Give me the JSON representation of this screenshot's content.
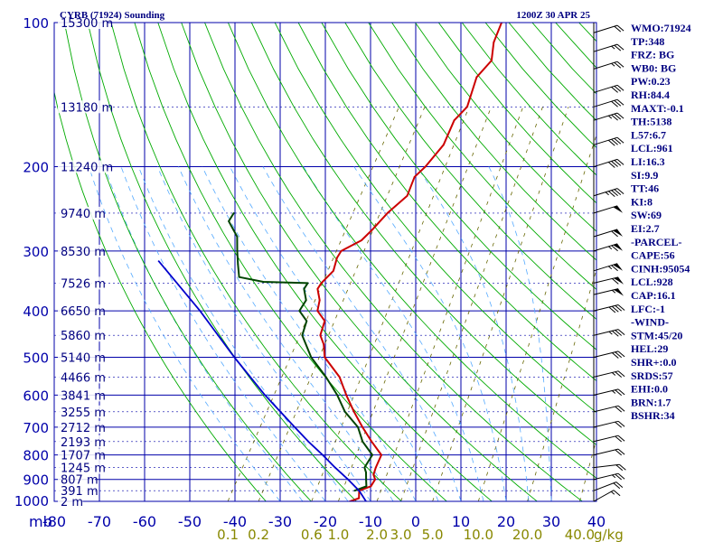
{
  "header": {
    "station": "CYRB (71924) Sounding",
    "time": "1200Z 30 APR 25"
  },
  "colors": {
    "background": "#ffffff",
    "grid": "#0000aa",
    "isotherm": "#0000aa",
    "dry_adiabat": "#00aa00",
    "moist_adiabat": "#55aaff",
    "mixing_ratio": "#666600",
    "temperature": "#cc0000",
    "dewpoint": "#004400",
    "parcel": "#0000cc",
    "text": "#000080",
    "mixing_label": "#888800"
  },
  "chart_data": {
    "type": "line",
    "title": "CYRB (71924) Sounding",
    "subtitle": "1200Z 30 APR 25",
    "x_axis": {
      "unit_label": "mb",
      "ticks": [
        "-80",
        "-70",
        "-60",
        "-50",
        "-40",
        "-30",
        "-20",
        "-10",
        "0",
        "10",
        "20",
        "30",
        "40"
      ],
      "range": [
        -80,
        40
      ]
    },
    "y_axis": {
      "scale": "log",
      "ticks": [
        "100",
        "200",
        "300",
        "400",
        "500",
        "600",
        "700",
        "800",
        "900",
        "1000"
      ],
      "range": [
        100,
        1000
      ]
    },
    "heights": [
      {
        "p": 100,
        "label": "15300 m"
      },
      {
        "p": 150,
        "label": "13180 m"
      },
      {
        "p": 200,
        "label": "11240 m"
      },
      {
        "p": 250,
        "label": "9740 m"
      },
      {
        "p": 300,
        "label": "8530 m"
      },
      {
        "p": 350,
        "label": "7526 m"
      },
      {
        "p": 400,
        "label": "6650 m"
      },
      {
        "p": 450,
        "label": "5860 m"
      },
      {
        "p": 500,
        "label": "5140 m"
      },
      {
        "p": 550,
        "label": "4466 m"
      },
      {
        "p": 600,
        "label": "3841 m"
      },
      {
        "p": 650,
        "label": "3255 m"
      },
      {
        "p": 700,
        "label": "2712 m"
      },
      {
        "p": 750,
        "label": "2193 m"
      },
      {
        "p": 800,
        "label": "1707 m"
      },
      {
        "p": 850,
        "label": "1245 m"
      },
      {
        "p": 900,
        "label": "807 m"
      },
      {
        "p": 950,
        "label": "391 m"
      },
      {
        "p": 1000,
        "label": "2 m"
      }
    ],
    "mixing_ratio_labels": [
      "0.1",
      "0.2",
      "0.6",
      "1.0",
      "2.0",
      "3.0",
      "5.0",
      "10.0",
      "20.0",
      "40.0"
    ],
    "mixing_ratio_unit": "g/kg",
    "mixing_ratio_values": [
      0.1,
      0.2,
      0.6,
      1.0,
      2.0,
      3.0,
      5.0,
      10.0,
      20.0,
      40.0
    ],
    "series": [
      {
        "key": "temperature",
        "points": [
          [
            1005,
            -15
          ],
          [
            985,
            -13
          ],
          [
            950,
            -14
          ],
          [
            930,
            -12
          ],
          [
            900,
            -12
          ],
          [
            880,
            -13
          ],
          [
            850,
            -13.5
          ],
          [
            800,
            -14
          ],
          [
            750,
            -18
          ],
          [
            700,
            -22
          ],
          [
            650,
            -26
          ],
          [
            600,
            -30
          ],
          [
            550,
            -34
          ],
          [
            500,
            -40
          ],
          [
            470,
            -42
          ],
          [
            450,
            -44
          ],
          [
            420,
            -45
          ],
          [
            400,
            -48
          ],
          [
            380,
            -49
          ],
          [
            360,
            -51
          ],
          [
            350,
            -51
          ],
          [
            330,
            -50
          ],
          [
            310,
            -51
          ],
          [
            300,
            -51
          ],
          [
            285,
            -48
          ],
          [
            270,
            -47
          ],
          [
            250,
            -46
          ],
          [
            230,
            -44
          ],
          [
            210,
            -45
          ],
          [
            200,
            -44
          ],
          [
            180,
            -43
          ],
          [
            160,
            -44
          ],
          [
            150,
            -43
          ],
          [
            130,
            -45
          ],
          [
            120,
            -44
          ],
          [
            110,
            -46
          ],
          [
            100,
            -47
          ]
        ]
      },
      {
        "key": "dewpoint",
        "points": [
          [
            950,
            -15
          ],
          [
            930,
            -13
          ],
          [
            900,
            -14
          ],
          [
            870,
            -15
          ],
          [
            850,
            -16
          ],
          [
            800,
            -16
          ],
          [
            750,
            -20
          ],
          [
            700,
            -23
          ],
          [
            650,
            -28
          ],
          [
            600,
            -32
          ],
          [
            550,
            -37
          ],
          [
            500,
            -43
          ],
          [
            450,
            -48
          ],
          [
            420,
            -49
          ],
          [
            400,
            -52
          ],
          [
            380,
            -52
          ],
          [
            360,
            -54
          ],
          [
            350,
            -54
          ],
          [
            348,
            -64
          ],
          [
            340,
            -70
          ],
          [
            320,
            -72
          ],
          [
            300,
            -74
          ],
          [
            280,
            -76
          ],
          [
            260,
            -80
          ],
          [
            250,
            -80
          ]
        ]
      },
      {
        "key": "parcel",
        "points": [
          [
            1000,
            -11
          ],
          [
            950,
            -14
          ],
          [
            900,
            -18
          ],
          [
            850,
            -22.5
          ],
          [
            800,
            -27
          ],
          [
            750,
            -32
          ],
          [
            700,
            -37
          ],
          [
            600,
            -48
          ],
          [
            500,
            -60
          ],
          [
            400,
            -74
          ],
          [
            315,
            -90
          ]
        ]
      }
    ]
  },
  "indices": [
    "WMO:71924",
    "TP:348",
    "FRZ: BG",
    "WB0: BG",
    "PW:0.23",
    "RH:84.4",
    "MAXT:-0.1",
    "TH:5138",
    "L57:6.7",
    "LCL:961",
    "LI:16.3",
    "SI:9.9",
    "TT:46",
    "KI:8",
    "SW:69",
    "EI:2.7",
    "-PARCEL-",
    "CAPE:56",
    "CINH:95054",
    "LCL:928",
    "CAP:16.1",
    "LFC:-1",
    "-WIND-",
    "STM:45/20",
    "HEL:29",
    "SHR+:0.0",
    "SRDS:57",
    "EHI:0.0",
    "BRN:1.7",
    "BSHR:34"
  ],
  "wind_barbs": [
    {
      "p": 1000,
      "dir": 230,
      "spd": 15
    },
    {
      "p": 950,
      "dir": 240,
      "spd": 20
    },
    {
      "p": 900,
      "dir": 250,
      "spd": 25
    },
    {
      "p": 850,
      "dir": 260,
      "spd": 20
    },
    {
      "p": 800,
      "dir": 250,
      "spd": 20
    },
    {
      "p": 750,
      "dir": 250,
      "spd": 20
    },
    {
      "p": 700,
      "dir": 250,
      "spd": 20
    },
    {
      "p": 650,
      "dir": 250,
      "spd": 20
    },
    {
      "p": 600,
      "dir": 250,
      "spd": 25
    },
    {
      "p": 550,
      "dir": 250,
      "spd": 25
    },
    {
      "p": 500,
      "dir": 250,
      "spd": 30
    },
    {
      "p": 450,
      "dir": 250,
      "spd": 35
    },
    {
      "p": 400,
      "dir": 250,
      "spd": 40
    },
    {
      "p": 370,
      "dir": 250,
      "spd": 55
    },
    {
      "p": 350,
      "dir": 250,
      "spd": 60
    },
    {
      "p": 330,
      "dir": 245,
      "spd": 65
    },
    {
      "p": 300,
      "dir": 245,
      "spd": 65
    },
    {
      "p": 280,
      "dir": 245,
      "spd": 60
    },
    {
      "p": 250,
      "dir": 245,
      "spd": 50
    },
    {
      "p": 230,
      "dir": 245,
      "spd": 45
    },
    {
      "p": 200,
      "dir": 245,
      "spd": 40
    },
    {
      "p": 180,
      "dir": 245,
      "spd": 40
    },
    {
      "p": 160,
      "dir": 245,
      "spd": 35
    },
    {
      "p": 150,
      "dir": 245,
      "spd": 30
    },
    {
      "p": 140,
      "dir": 245,
      "spd": 30
    },
    {
      "p": 125,
      "dir": 245,
      "spd": 25
    },
    {
      "p": 115,
      "dir": 245,
      "spd": 25
    },
    {
      "p": 105,
      "dir": 245,
      "spd": 20
    }
  ]
}
